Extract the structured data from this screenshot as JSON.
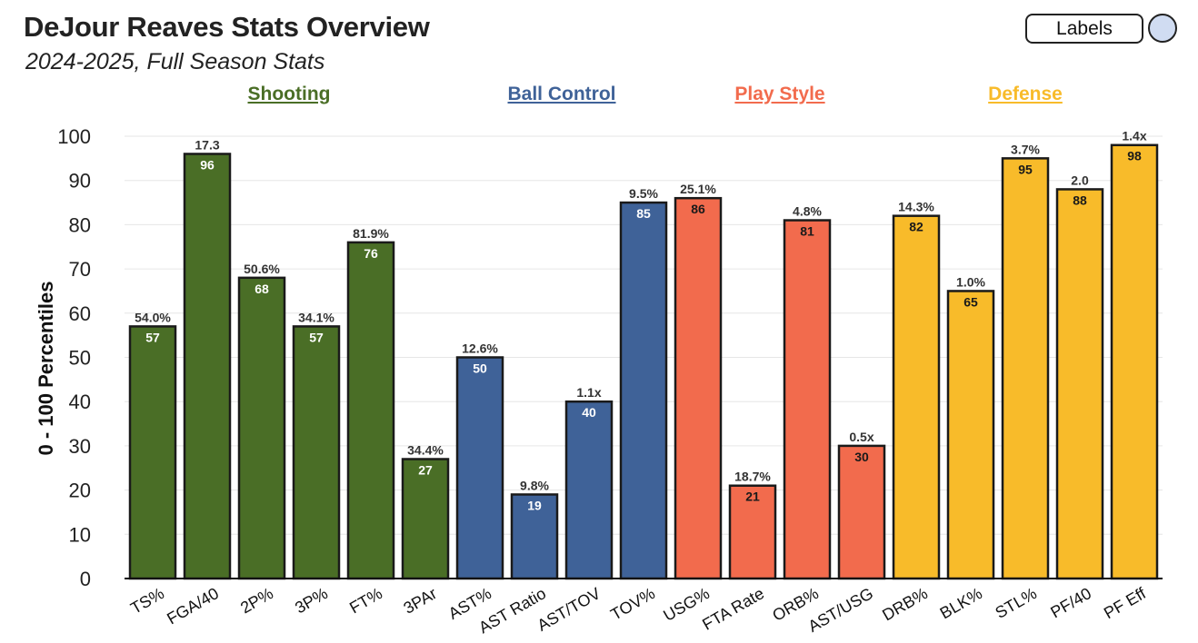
{
  "header": {
    "title": "DeJour Reaves Stats Overview",
    "subtitle": "2024-2025, Full Season Stats"
  },
  "controls": {
    "labels_button": "Labels"
  },
  "groups": [
    {
      "label": "Shooting",
      "color": "#4a6e26"
    },
    {
      "label": "Ball Control",
      "color": "#3f6298"
    },
    {
      "label": "Play Style",
      "color": "#f26b4d"
    },
    {
      "label": "Defense",
      "color": "#f8bb2a"
    }
  ],
  "chart_data": {
    "type": "bar",
    "ylabel": "0 - 100 Percentiles",
    "ylim": [
      0,
      100
    ],
    "yticks": [
      0,
      10,
      20,
      30,
      40,
      50,
      60,
      70,
      80,
      90,
      100
    ],
    "grid": true,
    "categories": [
      "TS%",
      "FGA/40",
      "2P%",
      "3P%",
      "FT%",
      "3PAr",
      "AST%",
      "AST Ratio",
      "AST/TOV",
      "TOV%",
      "USG%",
      "FTA Rate",
      "ORB%",
      "AST/USG",
      "DRB%",
      "BLK%",
      "STL%",
      "PF/40",
      "PF Eff"
    ],
    "values": [
      57,
      96,
      68,
      57,
      76,
      27,
      50,
      19,
      40,
      85,
      86,
      21,
      81,
      30,
      82,
      65,
      95,
      88,
      98
    ],
    "stat_labels": [
      "54.0%",
      "17.3",
      "50.6%",
      "34.1%",
      "81.9%",
      "34.4%",
      "12.6%",
      "9.8%",
      "1.1x",
      "9.5%",
      "25.1%",
      "18.7%",
      "4.8%",
      "0.5x",
      "14.3%",
      "1.0%",
      "3.7%",
      "2.0",
      "1.4x"
    ],
    "group_index": [
      0,
      0,
      0,
      0,
      0,
      0,
      1,
      1,
      1,
      1,
      2,
      2,
      2,
      2,
      3,
      3,
      3,
      3,
      3
    ],
    "colors": {
      "Shooting": "#4a6e26",
      "Ball Control": "#3f6298",
      "Play Style": "#f26b4d",
      "Defense": "#f8bb2a",
      "bar_border": "#1a1a1a",
      "grid": "#e6e6e6"
    }
  }
}
